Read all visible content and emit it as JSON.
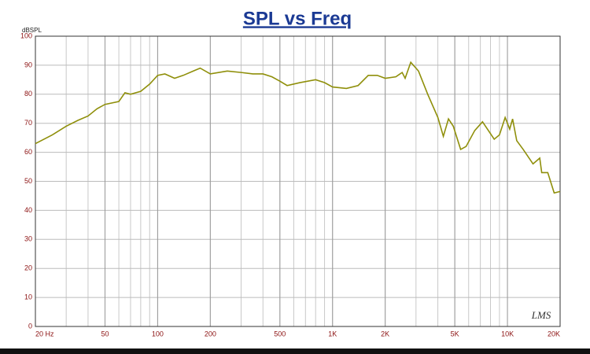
{
  "chart_data": {
    "type": "line",
    "title": "SPL vs Freq",
    "y_label": "dBSPL",
    "annotation": "LMS",
    "x_scale": "log",
    "grid": true,
    "x": [
      20,
      25,
      30,
      35,
      40,
      45,
      50,
      60,
      65,
      70,
      80,
      90,
      100,
      110,
      125,
      140,
      160,
      175,
      200,
      250,
      300,
      350,
      400,
      450,
      500,
      550,
      650,
      800,
      900,
      1000,
      1200,
      1400,
      1600,
      1800,
      2000,
      2300,
      2500,
      2600,
      2800,
      3100,
      3500,
      4000,
      4300,
      4600,
      4900,
      5400,
      5800,
      6500,
      7200,
      8400,
      9000,
      9700,
      10300,
      10700,
      11300,
      12300,
      14000,
      15300,
      15700,
      17000,
      18500,
      20000
    ],
    "series": [
      {
        "name": "SPL",
        "color": "#8f8f0a",
        "values": [
          63,
          66,
          69,
          71,
          72.5,
          75,
          76.5,
          77.5,
          80.5,
          80,
          81,
          83.5,
          86.5,
          87,
          85.5,
          86.5,
          88,
          89,
          87,
          88,
          87.5,
          87,
          87,
          86,
          84.5,
          83,
          84,
          85,
          84,
          82.5,
          82,
          83,
          86.5,
          86.5,
          85.5,
          86,
          87.5,
          85.5,
          91,
          88,
          80,
          72,
          65.5,
          71.5,
          69,
          61,
          62,
          67.5,
          70.5,
          64.5,
          66,
          72,
          68,
          71.5,
          64,
          61,
          56,
          58,
          53,
          53,
          46,
          46.5
        ]
      }
    ],
    "xlim": [
      20,
      20000
    ],
    "ylim": [
      0,
      100
    ],
    "xticks": [
      {
        "value": 20,
        "label": "20 Hz"
      },
      50,
      100,
      200,
      500,
      {
        "value": 1000,
        "label": "1K"
      },
      {
        "value": 2000,
        "label": "2K"
      },
      {
        "value": 5000,
        "label": "5K"
      },
      {
        "value": 10000,
        "label": "10K"
      },
      {
        "value": 20000,
        "label": "20K"
      }
    ],
    "yticks": [
      0,
      10,
      20,
      30,
      40,
      50,
      60,
      70,
      80,
      90,
      100
    ]
  }
}
